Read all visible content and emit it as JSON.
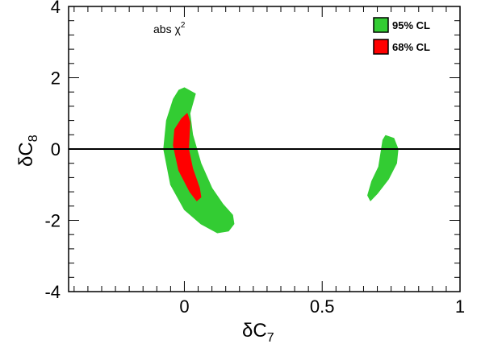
{
  "chart_data": {
    "type": "contour",
    "xlabel": {
      "main": "δC",
      "sub": "7"
    },
    "ylabel": {
      "main": "δC",
      "sub": "8"
    },
    "xlim": [
      -0.42,
      1.0
    ],
    "ylim": [
      -4,
      4
    ],
    "xticks": [
      {
        "value": 0,
        "label": "0"
      },
      {
        "value": 0.5,
        "label": "0.5"
      },
      {
        "value": 1,
        "label": "1"
      }
    ],
    "yticks": [
      {
        "value": -4,
        "label": "-4"
      },
      {
        "value": -2,
        "label": "-2"
      },
      {
        "value": 0,
        "label": "0"
      },
      {
        "value": 2,
        "label": "2"
      },
      {
        "value": 4,
        "label": "4"
      }
    ],
    "annotation": {
      "text": "abs χ",
      "superscript": "2"
    },
    "reference_line": {
      "y": 0
    },
    "legend": {
      "position": "top-right",
      "entries": [
        {
          "label": "95% CL",
          "color": "#33cc33"
        },
        {
          "label": "68% CL",
          "color": "#ff0000"
        }
      ]
    },
    "regions": [
      {
        "name": "95% CL",
        "color": "#33cc33",
        "polygon": [
          [
            0.0,
            1.72
          ],
          [
            0.04,
            1.55
          ],
          [
            0.02,
            1.0
          ],
          [
            0.03,
            0.4
          ],
          [
            0.06,
            -0.4
          ],
          [
            0.1,
            -1.1
          ],
          [
            0.14,
            -1.55
          ],
          [
            0.175,
            -1.85
          ],
          [
            0.18,
            -2.1
          ],
          [
            0.16,
            -2.3
          ],
          [
            0.12,
            -2.35
          ],
          [
            0.06,
            -2.1
          ],
          [
            0.0,
            -1.7
          ],
          [
            -0.05,
            -1.0
          ],
          [
            -0.075,
            0.0
          ],
          [
            -0.065,
            0.8
          ],
          [
            -0.04,
            1.4
          ],
          [
            -0.02,
            1.65
          ]
        ]
      },
      {
        "name": "68% CL",
        "color": "#ff0000",
        "polygon": [
          [
            0.01,
            1.0
          ],
          [
            0.02,
            0.75
          ],
          [
            0.015,
            0.0
          ],
          [
            0.03,
            -0.55
          ],
          [
            0.055,
            -1.1
          ],
          [
            0.06,
            -1.35
          ],
          [
            0.045,
            -1.45
          ],
          [
            0.02,
            -1.2
          ],
          [
            -0.02,
            -0.6
          ],
          [
            -0.04,
            0.1
          ],
          [
            -0.035,
            0.55
          ],
          [
            -0.01,
            0.85
          ]
        ]
      },
      {
        "name": "95% CL",
        "color": "#33cc33",
        "polygon": [
          [
            0.73,
            0.38
          ],
          [
            0.76,
            0.3
          ],
          [
            0.775,
            0.0
          ],
          [
            0.77,
            -0.4
          ],
          [
            0.74,
            -0.85
          ],
          [
            0.7,
            -1.25
          ],
          [
            0.675,
            -1.45
          ],
          [
            0.665,
            -1.3
          ],
          [
            0.68,
            -0.9
          ],
          [
            0.705,
            -0.5
          ],
          [
            0.715,
            0.0
          ],
          [
            0.72,
            0.25
          ]
        ]
      }
    ]
  }
}
